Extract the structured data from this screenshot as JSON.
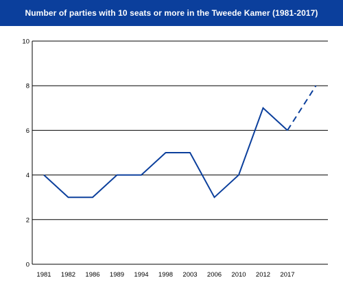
{
  "chart_data": {
    "type": "line",
    "title": "Number of parties with 10 seats or more in the Tweede Kamer (1981-2017)",
    "categories": [
      "1981",
      "1982",
      "1986",
      "1989",
      "1994",
      "1998",
      "2003",
      "2006",
      "2010",
      "2012",
      "2017"
    ],
    "values": [
      4,
      3,
      3,
      4,
      4,
      5,
      5,
      3,
      4,
      7,
      6
    ],
    "projection": {
      "from_value": 6,
      "to_value": 8,
      "style": "dashed"
    },
    "ylim": [
      0,
      10
    ],
    "yticks": [
      "0",
      "2",
      "4",
      "6",
      "8",
      "10"
    ],
    "grid": true,
    "colors": {
      "title_bar": "#0b3f9c",
      "line": "#0b3f9c",
      "grid": "#000000"
    }
  }
}
